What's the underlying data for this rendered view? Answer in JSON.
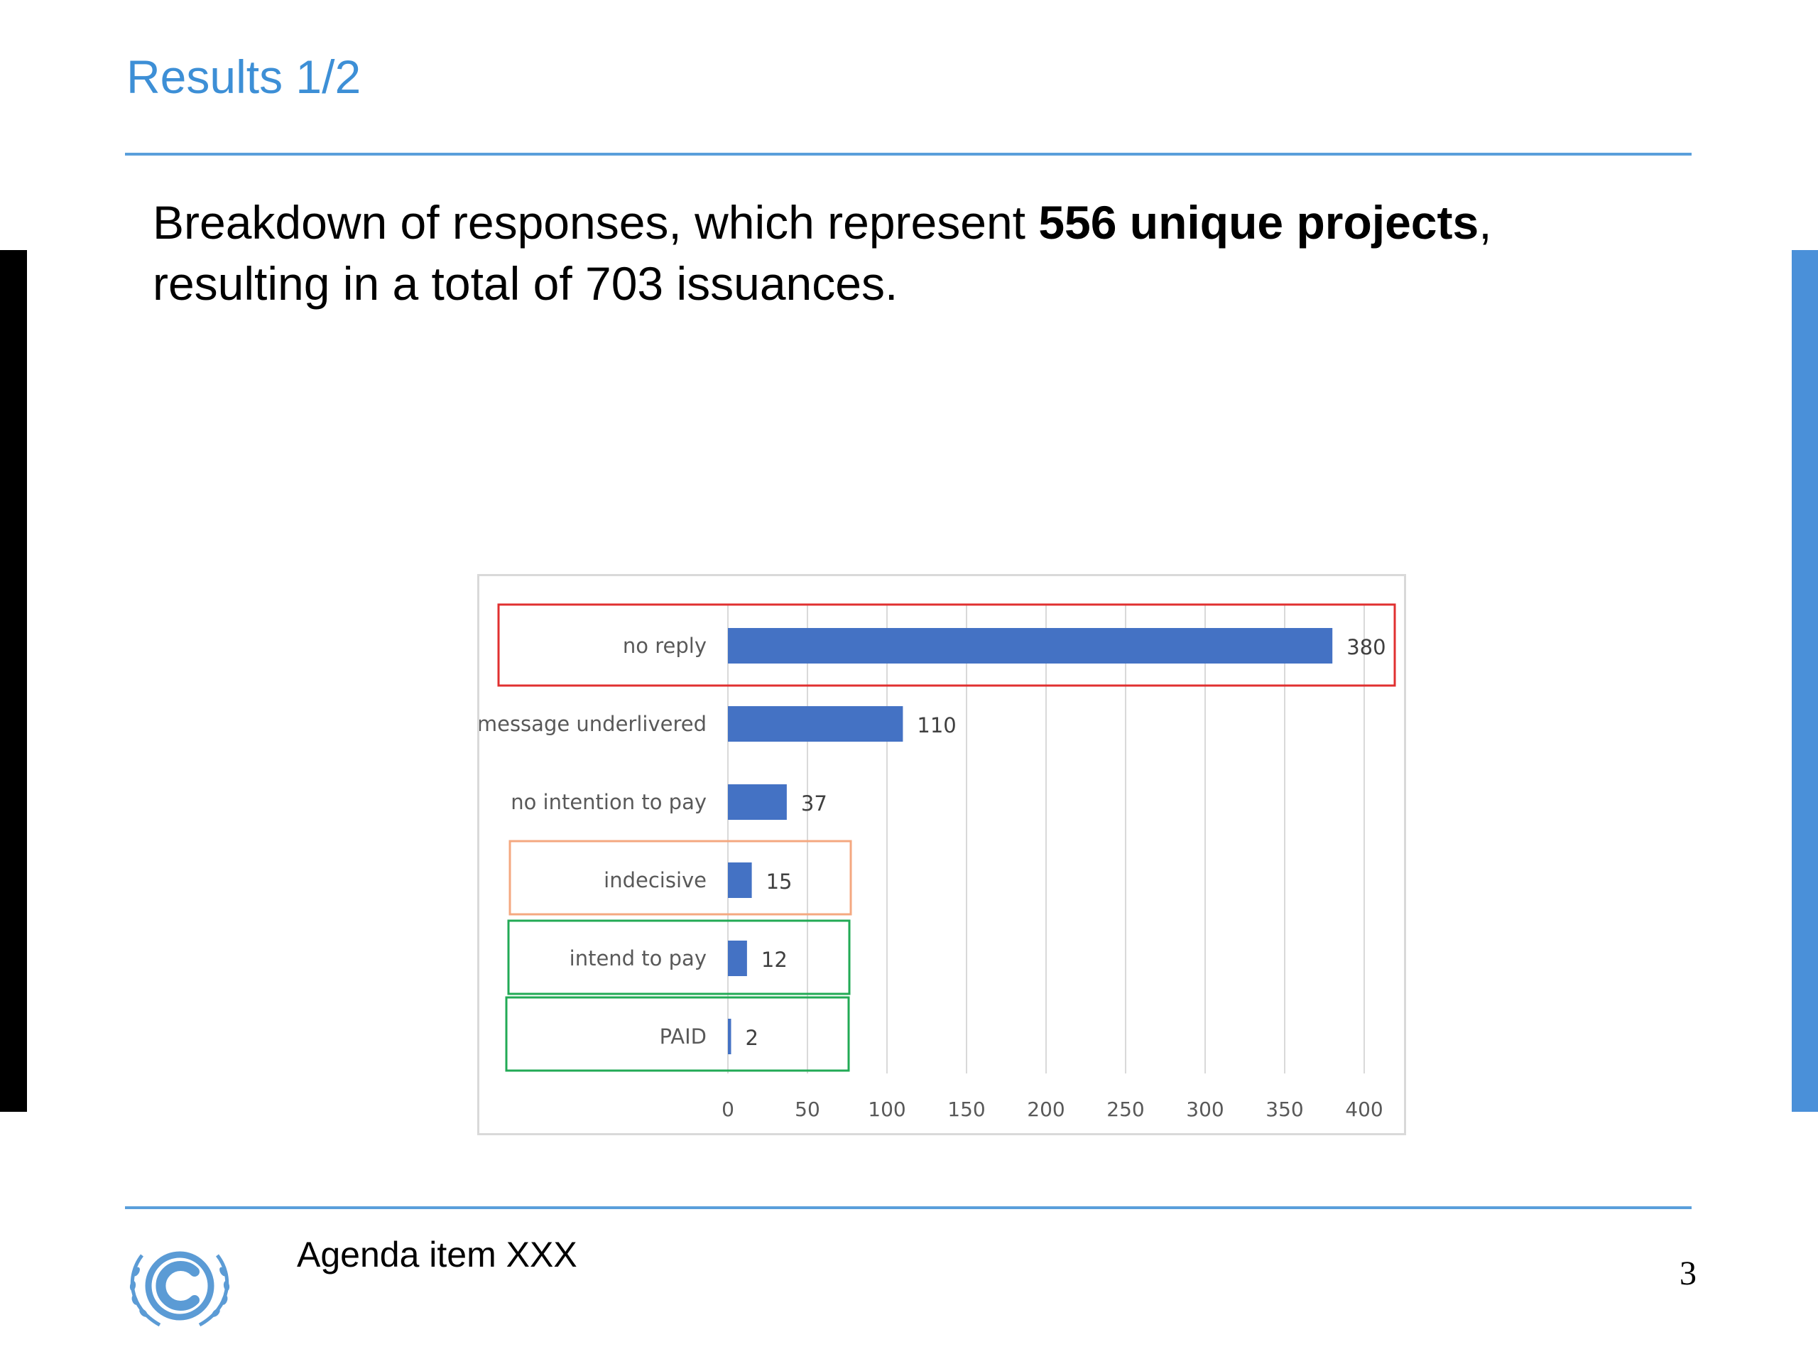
{
  "slide": {
    "title": "Results 1/2",
    "subtitle_pre": "Breakdown of responses, which represent ",
    "subtitle_bold": "556 unique projects",
    "subtitle_post": ", resulting in a total of 703 issuances.",
    "footer": "Agenda item XXX",
    "page_number": "3"
  },
  "colors": {
    "title": "#3d8fd6",
    "bar": "#4472c4",
    "highlight_no_reply": "#e03030",
    "highlight_indecisive": "#f4a880",
    "highlight_pay": "#22aa55",
    "logo": "#5b9bd5"
  },
  "chart_data": {
    "type": "bar",
    "orientation": "horizontal",
    "categories": [
      "no reply",
      "message underlivered",
      "no intention to pay",
      "indecisive",
      "intend to pay",
      "PAID"
    ],
    "values": [
      380,
      110,
      37,
      15,
      12,
      2
    ],
    "xlim": [
      0,
      400
    ],
    "xticks": [
      0,
      50,
      100,
      150,
      200,
      250,
      300,
      350,
      400
    ],
    "grid": true,
    "data_labels": true
  }
}
